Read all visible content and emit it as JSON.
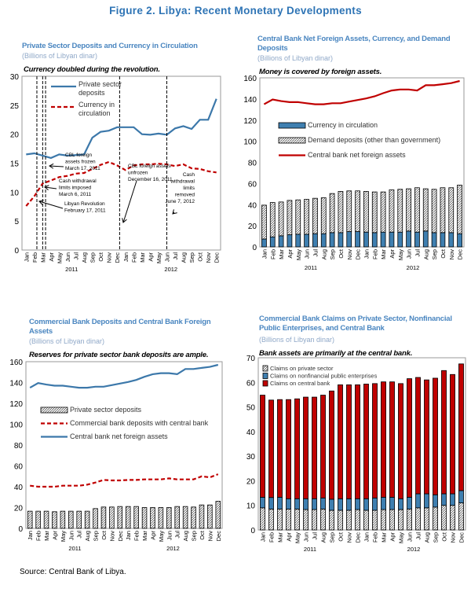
{
  "figure_title": "Figure 2. Libya: Recent Monetary Developments",
  "source": "Source: Central Bank of Libya.",
  "colors": {
    "title_blue": "#2e74b5",
    "line_blue": "#3c78aa",
    "bar_blue": "#3f7fb0",
    "red": "#c00000"
  },
  "panels": [
    {
      "title": "Private Sector Deposits and Currency in Circulation",
      "subtitle": "(Billions of Libyan dinar)",
      "headline": "Currency doubled during the revolution."
    },
    {
      "title": "Central Bank Net Foreign Assets, Currency, and Demand Deposits",
      "subtitle": "(Billions of Libyan dinar)",
      "headline": "Money is covered by foreign assets."
    },
    {
      "title": "Commercial Bank Deposits and Central Bank Foreign Assets",
      "subtitle": "(Billions of Libyan dinar)",
      "headline": "Reserves for private sector bank deposits are ample."
    },
    {
      "title": "Commercial Bank Claims on Private Sector, Nonfinancial Public Enterprises, and Central Bank",
      "subtitle": "(Billions of Libyan dinar)",
      "headline": "Bank assets are primarily at the central bank."
    }
  ],
  "chart_data": [
    {
      "type": "line",
      "categories": [
        "Jan",
        "Feb",
        "Mar",
        "Apr",
        "May",
        "Jun",
        "Jul",
        "Aug",
        "Sep",
        "Oct",
        "Nov",
        "Dec",
        "Jan",
        "Feb",
        "Mar",
        "Apr",
        "May",
        "Jun",
        "Jul",
        "Aug",
        "Sep",
        "Oct",
        "Nov",
        "Dec"
      ],
      "years": [
        "2011",
        "2012"
      ],
      "ylim": [
        0,
        30
      ],
      "yticks": [
        0,
        5,
        10,
        15,
        20,
        25,
        30
      ],
      "series": [
        {
          "name": "Private sector deposits",
          "style": "solid",
          "color": "#3c78aa",
          "values": [
            16.5,
            16.7,
            16.3,
            15.9,
            16.5,
            16.3,
            16.4,
            16.5,
            19.4,
            20.4,
            20.6,
            21.2,
            21.2,
            21.2,
            20.0,
            19.9,
            20.1,
            19.9,
            21.0,
            21.4,
            20.9,
            22.5,
            22.5,
            26.1
          ]
        },
        {
          "name": "Currency in circulation",
          "style": "dashed",
          "color": "#c00000",
          "values": [
            7.6,
            9.3,
            11.5,
            12.0,
            12.6,
            12.8,
            13.2,
            13.3,
            14.0,
            14.7,
            15.2,
            14.6,
            13.8,
            14.6,
            14.8,
            14.8,
            14.9,
            14.8,
            14.5,
            14.8,
            14.1,
            14.0,
            13.6,
            13.4
          ]
        }
      ],
      "events": [
        {
          "date": "February 17, 2011",
          "lines": [
            "Libyan Revolution",
            "February 17, 2011"
          ]
        },
        {
          "date": "March 6, 2011",
          "lines": [
            "Cash withdrawal",
            "limits imposed",
            "March 6, 2011"
          ]
        },
        {
          "date": "March 17, 2011",
          "lines": [
            "CBL foreign",
            "assets frozen",
            "March 17, 2011"
          ]
        },
        {
          "date": "December 16, 2011",
          "lines": [
            "CBL foreign assets",
            "unfrozen",
            "December 16, 2011"
          ]
        },
        {
          "date": "June 7, 2012",
          "lines": [
            "Cash",
            "withdrawal",
            "limits",
            "removed",
            "June 7, 2012"
          ]
        }
      ]
    },
    {
      "type": "bar+line",
      "categories": [
        "Jan",
        "Feb",
        "Mar",
        "Apr",
        "May",
        "Jun",
        "Jul",
        "Aug",
        "Sep",
        "Oct",
        "Nov",
        "Dec",
        "Jan",
        "Feb",
        "Mar",
        "Apr",
        "May",
        "Jun",
        "Jul",
        "Aug",
        "Sep",
        "Oct",
        "Nov",
        "Dec"
      ],
      "years": [
        "2011",
        "2012"
      ],
      "ylim": [
        0,
        160
      ],
      "yticks": [
        0,
        20,
        40,
        60,
        80,
        100,
        120,
        140,
        160
      ],
      "stacked_bars": [
        {
          "name": "Currency in circulation",
          "fill": "#3f7fb0",
          "values": [
            7.5,
            9.5,
            10.5,
            11.5,
            12,
            12,
            12.5,
            12.5,
            13.5,
            13.5,
            14.5,
            14.5,
            14,
            13.5,
            14,
            14,
            14,
            15,
            14,
            15,
            13.5,
            13.5,
            13.5,
            12.5
          ]
        },
        {
          "name": "Demand deposits (other than government)",
          "fill": "hatch",
          "values": [
            32,
            32.5,
            32,
            32.5,
            32.5,
            33,
            33.5,
            34,
            37,
            39,
            38.5,
            38.5,
            38.5,
            38.5,
            38,
            40,
            40.5,
            40,
            42,
            40,
            41,
            42.5,
            42.5,
            46
          ]
        }
      ],
      "lines": [
        {
          "name": "Central bank net foreign assets",
          "style": "solid",
          "color": "#c00000",
          "values": [
            135,
            139.5,
            138,
            137,
            137,
            136,
            135,
            135,
            136,
            136,
            137.5,
            139,
            140.5,
            142.5,
            145.5,
            148,
            149,
            149,
            148,
            153,
            153,
            154,
            155,
            157
          ]
        }
      ]
    },
    {
      "type": "bar+line",
      "categories": [
        "Jan",
        "Feb",
        "Mar",
        "Apr",
        "May",
        "Jun",
        "Jul",
        "Aug",
        "Sep",
        "Oct",
        "Nov",
        "Dec",
        "Jan",
        "Feb",
        "Mar",
        "Apr",
        "May",
        "Jun",
        "Jul",
        "Aug",
        "Sep",
        "Oct",
        "Nov",
        "Dec"
      ],
      "years": [
        "2011",
        "2012"
      ],
      "ylim": [
        0,
        160
      ],
      "yticks": [
        0,
        20,
        40,
        60,
        80,
        100,
        120,
        140,
        160
      ],
      "stacked_bars": [
        {
          "name": "Private sector deposits",
          "fill": "hatch",
          "values": [
            16.5,
            16.5,
            16.5,
            16,
            16.5,
            16.5,
            16.5,
            16.5,
            19,
            20.5,
            20.5,
            21,
            21,
            21,
            20,
            20,
            20,
            20,
            21,
            21,
            20.5,
            22.5,
            22.5,
            26
          ]
        }
      ],
      "lines": [
        {
          "name": "Commercial bank deposits with central bank",
          "style": "dashed",
          "color": "#c00000",
          "values": [
            41,
            40,
            40,
            40,
            41,
            41,
            41,
            42,
            44,
            46.5,
            46,
            46,
            46.5,
            46.5,
            47,
            47,
            47,
            48,
            47,
            47,
            47,
            50,
            49,
            52
          ]
        },
        {
          "name": "Central bank net foreign assets",
          "style": "solid",
          "color": "#3c78aa",
          "values": [
            135,
            139.5,
            138,
            137,
            137,
            136,
            135,
            135,
            136,
            136,
            137.5,
            139,
            140.5,
            142.5,
            145.5,
            148,
            149,
            149,
            148,
            153,
            153,
            154,
            155,
            157
          ]
        }
      ]
    },
    {
      "type": "bar",
      "categories": [
        "Jan",
        "Feb",
        "Mar",
        "Apr",
        "May",
        "Jun",
        "Jul",
        "Aug",
        "Sep",
        "Oct",
        "Nov",
        "Dec",
        "Jan",
        "Feb",
        "Mar",
        "Apr",
        "May",
        "Jun",
        "Jul",
        "Aug",
        "Sep",
        "Oct",
        "Nov",
        "Dec"
      ],
      "years": [
        "2011",
        "2012"
      ],
      "ylim": [
        0,
        70
      ],
      "yticks": [
        0,
        10,
        20,
        30,
        40,
        50,
        60,
        70
      ],
      "stacked_bars": [
        {
          "name": "Claims on private sector",
          "fill": "hatch",
          "values": [
            9,
            8.5,
            8.5,
            8.5,
            8.5,
            8.3,
            8.3,
            8.5,
            8,
            8,
            8,
            8.3,
            8,
            8,
            8.3,
            8.3,
            8.3,
            8.5,
            9,
            9,
            9.3,
            10,
            10,
            11
          ]
        },
        {
          "name": "Claims on nonfinancial public enterprises",
          "fill": "#3f7fb0",
          "values": [
            4.3,
            4.7,
            4.8,
            4.2,
            4.2,
            4.4,
            4.4,
            4.5,
            4.5,
            4.7,
            4.7,
            4.4,
            4.7,
            5,
            5,
            5,
            4.4,
            4.8,
            5.7,
            5.7,
            5,
            4.7,
            4.7,
            5
          ]
        },
        {
          "name": "Claims on central bank",
          "fill": "#c00000",
          "values": [
            41.5,
            39.6,
            39.7,
            40.3,
            40.6,
            41.3,
            41.3,
            41.8,
            44,
            46.3,
            46.3,
            46.3,
            46.6,
            46.5,
            46.9,
            46.9,
            46.8,
            48.2,
            47.3,
            46.3,
            47.4,
            50.1,
            48.5,
            51.5
          ]
        }
      ],
      "lines": []
    }
  ]
}
